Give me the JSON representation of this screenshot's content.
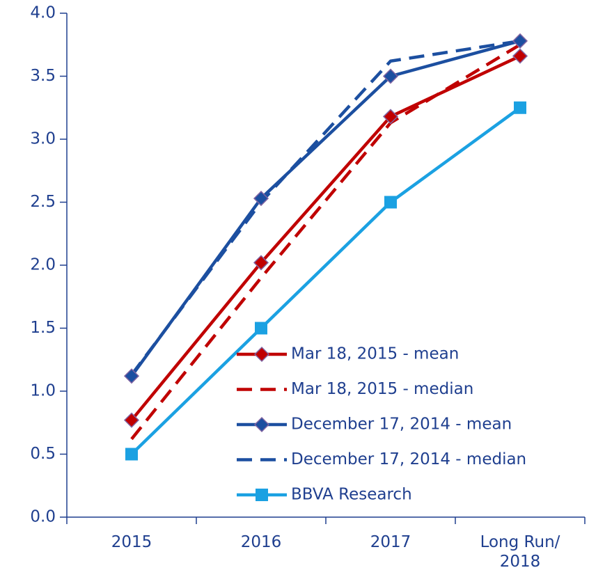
{
  "chart_data": {
    "type": "line",
    "categories": [
      "2015",
      "2016",
      "2017",
      "Long Run/ 2018"
    ],
    "series": [
      {
        "name": "Mar 18, 2015 - mean",
        "color": "#c00000",
        "dash": false,
        "marker": "diamond",
        "values": [
          0.77,
          2.02,
          3.18,
          3.66
        ]
      },
      {
        "name": "Mar 18, 2015 - median",
        "color": "#c00000",
        "dash": true,
        "marker": "none",
        "values": [
          0.62,
          1.9,
          3.13,
          3.75
        ]
      },
      {
        "name": "December 17, 2014 - mean",
        "color": "#1c4fa0",
        "dash": false,
        "marker": "diamond",
        "values": [
          1.12,
          2.53,
          3.5,
          3.78
        ]
      },
      {
        "name": "December 17, 2014 - median",
        "color": "#1c4fa0",
        "dash": true,
        "marker": "none",
        "values": [
          1.13,
          2.5,
          3.62,
          3.78
        ]
      },
      {
        "name": "BBVA Research",
        "color": "#1ba1e2",
        "dash": false,
        "marker": "square",
        "values": [
          0.5,
          1.5,
          2.5,
          3.25
        ]
      }
    ],
    "ylim": [
      0,
      4
    ],
    "yticks": [
      {
        "value": 0,
        "label": "0.0"
      },
      0.5,
      {
        "value": 1,
        "label": "1.0"
      },
      1.5,
      {
        "value": 2,
        "label": "2.0"
      },
      2.5,
      {
        "value": 3,
        "label": "3.0"
      },
      3.5,
      {
        "value": 4,
        "label": "4.0"
      }
    ],
    "legend": "lower right",
    "grid": false
  }
}
